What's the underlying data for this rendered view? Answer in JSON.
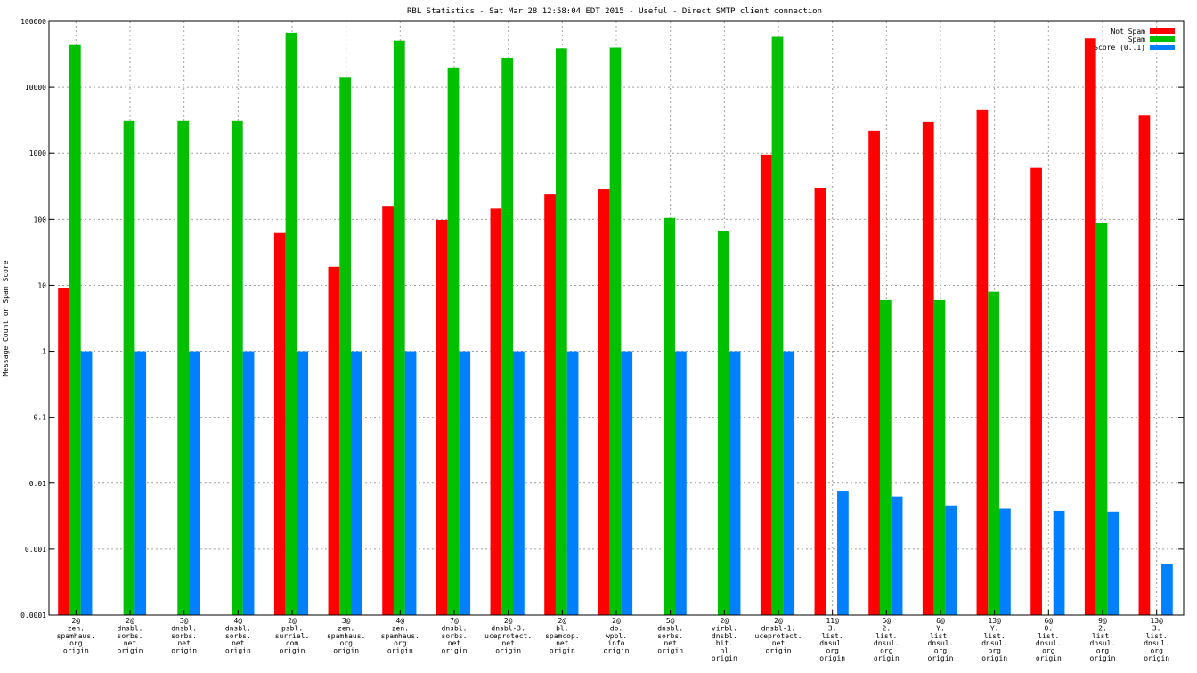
{
  "chart_data": {
    "type": "bar",
    "title": "RBL Statistics - Sat Mar 28 12:58:04 EDT 2015 - Useful - Direct SMTP client connection",
    "xlabel": "",
    "ylabel": "Message Count or Spam Score",
    "yscale": "log",
    "ylim": [
      0.0001,
      100000
    ],
    "yticks": [
      "0.0001",
      "0.001",
      "0.01",
      "0.1",
      "1",
      "10",
      "100",
      "1000",
      "10000",
      "100000"
    ],
    "grid": true,
    "legend_position": "top-right",
    "categories": [
      [
        "2@",
        "zen.",
        "spamhaus.",
        "org",
        "origin"
      ],
      [
        "2@",
        "dnsbl.",
        "sorbs.",
        "net",
        "origin"
      ],
      [
        "3@",
        "dnsbl.",
        "sorbs.",
        "net",
        "origin"
      ],
      [
        "4@",
        "dnsbl.",
        "sorbs.",
        "net",
        "origin"
      ],
      [
        "2@",
        "psbl.",
        "surriel.",
        "com",
        "origin"
      ],
      [
        "3@",
        "zen.",
        "spamhaus.",
        "org",
        "origin"
      ],
      [
        "4@",
        "zen.",
        "spamhaus.",
        "org",
        "origin"
      ],
      [
        "7@",
        "dnsbl.",
        "sorbs.",
        "net",
        "origin"
      ],
      [
        "2@",
        "dnsbl-3.",
        "uceprotect.",
        "net",
        "origin"
      ],
      [
        "2@",
        "bl.",
        "spamcop.",
        "net",
        "origin"
      ],
      [
        "2@",
        "db.",
        "wpbl.",
        "info",
        "origin"
      ],
      [
        "5@",
        "dnsbl.",
        "sorbs.",
        "net",
        "origin"
      ],
      [
        "2@",
        "virbl.",
        "dnsbl.",
        "bit.",
        "nl",
        "origin"
      ],
      [
        "2@",
        "dnsbl-1.",
        "uceprotect.",
        "net",
        "origin"
      ],
      [
        "11@",
        "3.",
        "list.",
        "dnsul.",
        "org",
        "origin"
      ],
      [
        "6@",
        "2.",
        "list.",
        "dnsul.",
        "org",
        "origin"
      ],
      [
        "6@",
        "Y.",
        "list.",
        "dnsul.",
        "org",
        "origin"
      ],
      [
        "13@",
        "Y.",
        "list.",
        "dnsul.",
        "org",
        "origin"
      ],
      [
        "6@",
        "0.",
        "list.",
        "dnsul.",
        "org",
        "origin"
      ],
      [
        "9@",
        "2.",
        "list.",
        "dnsul.",
        "org",
        "origin"
      ],
      [
        "13@",
        "3.",
        "list.",
        "dnsul.",
        "org",
        "origin"
      ]
    ],
    "series": [
      {
        "name": "Not Spam",
        "color": "#ff0000",
        "values": [
          9,
          null,
          null,
          null,
          62,
          19,
          160,
          98,
          145,
          240,
          290,
          null,
          null,
          950,
          300,
          2200,
          3000,
          4500,
          600,
          55000,
          3800
        ]
      },
      {
        "name": "Spam",
        "color": "#00c000",
        "values": [
          45000,
          3100,
          3100,
          3100,
          67000,
          14000,
          51000,
          20000,
          28000,
          39000,
          40000,
          105,
          66,
          58000,
          null,
          6,
          6,
          8,
          null,
          88,
          null
        ]
      },
      {
        "name": "Score (0..1)",
        "color": "#0080ff",
        "values": [
          1,
          1,
          1,
          1,
          1,
          1,
          1,
          1,
          1,
          1,
          1,
          1,
          1,
          1,
          0.0075,
          0.0063,
          0.0046,
          0.0041,
          0.0038,
          0.0037,
          0.0006
        ]
      }
    ]
  }
}
